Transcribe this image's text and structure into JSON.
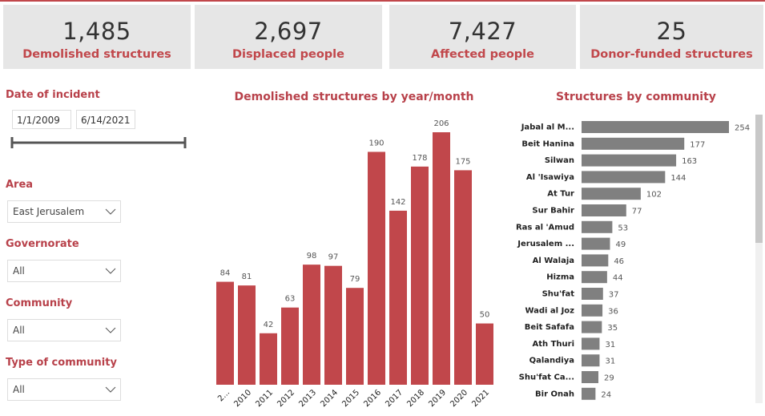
{
  "kpis": [
    {
      "value": "1,485",
      "label": "Demolished structures"
    },
    {
      "value": "2,697",
      "label": "Displaced people"
    },
    {
      "value": "7,427",
      "label": "Affected people"
    },
    {
      "value": "25",
      "label": "Donor-funded structures"
    }
  ],
  "filters": {
    "date": {
      "title": "Date of incident",
      "start": "1/1/2009",
      "end": "6/14/2021"
    },
    "dropdowns": [
      {
        "title": "Area",
        "value": "East Jerusalem"
      },
      {
        "title": "Governorate",
        "value": "All"
      },
      {
        "title": "Community",
        "value": "All"
      },
      {
        "title": "Type of community",
        "value": "All"
      }
    ]
  },
  "chart_data": [
    {
      "type": "bar",
      "title": "Demolished structures by year/month",
      "categories": [
        "2...",
        "2010",
        "2011",
        "2012",
        "2013",
        "2014",
        "2015",
        "2016",
        "2017",
        "2018",
        "2019",
        "2020",
        "2021"
      ],
      "values": [
        84,
        81,
        42,
        63,
        98,
        97,
        79,
        190,
        142,
        178,
        206,
        175,
        50
      ],
      "color": "#c1474b"
    },
    {
      "type": "hbar",
      "title": "Structures by community",
      "categories": [
        "Jabal al M...",
        "Beit Hanina",
        "Silwan",
        "Al 'Isawiya",
        "At Tur",
        "Sur Bahir",
        "Ras al 'Amud",
        "Jerusalem ...",
        "Al Walaja",
        "Hizma",
        "Shu'fat",
        "Wadi al Joz",
        "Beit Safafa",
        "Ath Thuri",
        "Qalandiya",
        "Shu'fat Ca...",
        "Bir Onah"
      ],
      "values": [
        254,
        177,
        163,
        144,
        102,
        77,
        53,
        49,
        46,
        44,
        37,
        36,
        35,
        31,
        31,
        29,
        24
      ],
      "color": "#808080"
    }
  ]
}
